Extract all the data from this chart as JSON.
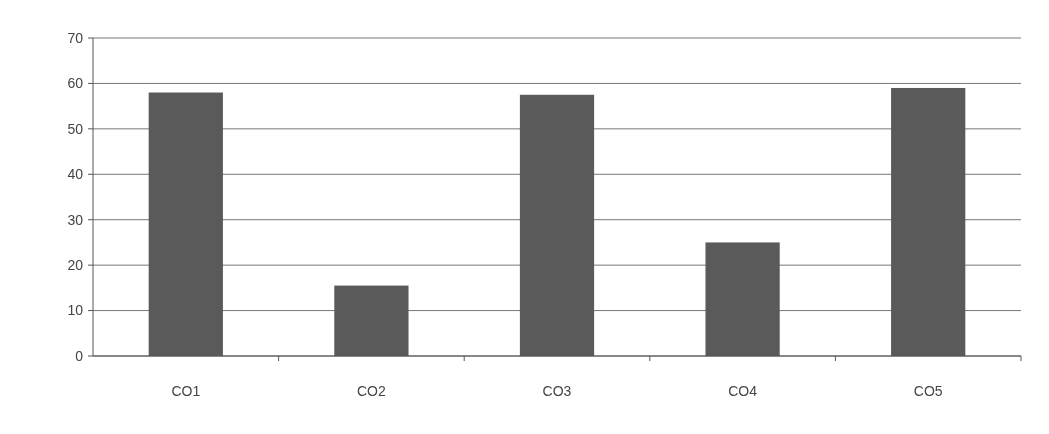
{
  "chart_data": {
    "type": "bar",
    "categories": [
      "CO1",
      "CO2",
      "CO3",
      "CO4",
      "CO5"
    ],
    "values": [
      58,
      15.5,
      57.5,
      25,
      59
    ],
    "color": "#5a5a5a",
    "ylim": [
      0,
      70
    ],
    "yticks": [
      0,
      10,
      20,
      30,
      40,
      50,
      60,
      70
    ],
    "grid": "y"
  }
}
